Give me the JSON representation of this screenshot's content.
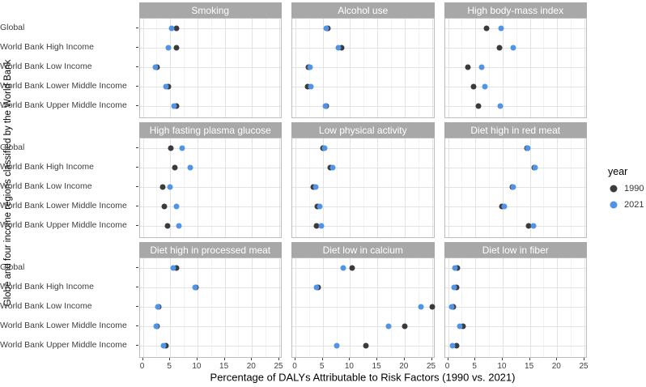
{
  "figure": {
    "y_axis_title": "Globe and four income regions classified by the World Bank",
    "x_axis_title": "Percentage of DALYs Attributable to Risk Factors (1990 vs. 2021)"
  },
  "legend": {
    "title": "year",
    "position": "right",
    "items": [
      {
        "label": "1990",
        "color": "#3b3b3b"
      },
      {
        "label": "2021",
        "color": "#4f94e8"
      }
    ]
  },
  "colors": {
    "strip_background": "#a8a8a8",
    "strip_text": "#ffffff",
    "panel_border": "#bdbdbd",
    "gridline_major": "#e3e3e3",
    "gridline_minor": "#f2f2f2",
    "series_1990": "#3b3b3b",
    "series_2021": "#4f94e8"
  },
  "chart_data": {
    "type": "scatter",
    "title": "",
    "xlabel": "Percentage of DALYs Attributable to Risk Factors (1990 vs. 2021)",
    "ylabel": "Globe and four income regions classified by the World Bank",
    "xlim": [
      0,
      25
    ],
    "x_ticks": [
      0,
      5,
      10,
      15,
      20,
      25
    ],
    "grid": true,
    "legend_title": "year",
    "series_names": [
      "1990",
      "2021"
    ],
    "categories": [
      "Global",
      "World Bank High Income",
      "World Bank Low Income",
      "World Bank Lower Middle Income",
      "World Bank Upper Middle Income"
    ],
    "facets": [
      {
        "title": "Smoking",
        "series": [
          {
            "name": "1990",
            "values": [
              6.1,
              6.1,
              2.6,
              4.7,
              6.2
            ]
          },
          {
            "name": "2021",
            "values": [
              5.2,
              4.7,
              2.3,
              4.2,
              5.7
            ]
          }
        ]
      },
      {
        "title": "Alcohol use",
        "series": [
          {
            "name": "1990",
            "values": [
              5.9,
              8.4,
              2.3,
              2.2,
              5.7
            ]
          },
          {
            "name": "2021",
            "values": [
              5.6,
              7.9,
              2.7,
              2.8,
              5.5
            ]
          }
        ]
      },
      {
        "title": "High body-mass index",
        "series": [
          {
            "name": "1990",
            "values": [
              7.1,
              9.4,
              3.6,
              4.6,
              5.5
            ]
          },
          {
            "name": "2021",
            "values": [
              9.7,
              11.9,
              6.1,
              6.8,
              9.6
            ]
          }
        ]
      },
      {
        "title": "High fasting plasma glucose",
        "series": [
          {
            "name": "1990",
            "values": [
              5.1,
              5.9,
              3.7,
              4.0,
              4.5
            ]
          },
          {
            "name": "2021",
            "values": [
              7.2,
              8.7,
              5.0,
              6.2,
              6.6
            ]
          }
        ]
      },
      {
        "title": "Low physical activity",
        "series": [
          {
            "name": "1990",
            "values": [
              5.0,
              6.4,
              3.3,
              4.0,
              3.9
            ]
          },
          {
            "name": "2021",
            "values": [
              5.3,
              6.8,
              3.7,
              4.5,
              4.7
            ]
          }
        ]
      },
      {
        "title": "Diet high in red meat",
        "series": [
          {
            "name": "1990",
            "values": [
              14.5,
              15.8,
              11.8,
              9.8,
              14.8
            ]
          },
          {
            "name": "2021",
            "values": [
              14.6,
              16.0,
              11.9,
              10.3,
              15.7
            ]
          }
        ]
      },
      {
        "title": "Diet high in processed meat",
        "series": [
          {
            "name": "1990",
            "values": [
              6.1,
              9.7,
              2.9,
              2.6,
              4.2
            ]
          },
          {
            "name": "2021",
            "values": [
              5.5,
              9.6,
              2.8,
              2.5,
              3.8
            ]
          }
        ]
      },
      {
        "title": "Diet low in calcium",
        "series": [
          {
            "name": "1990",
            "values": [
              10.4,
              4.2,
              25.0,
              20.0,
              12.9
            ]
          },
          {
            "name": "2021",
            "values": [
              8.7,
              3.8,
              23.0,
              17.1,
              7.5
            ]
          }
        ]
      },
      {
        "title": "Diet low in fiber",
        "series": [
          {
            "name": "1990",
            "values": [
              1.7,
              1.6,
              0.9,
              2.8,
              1.6
            ]
          },
          {
            "name": "2021",
            "values": [
              1.2,
              1.1,
              0.6,
              2.1,
              0.8
            ]
          }
        ]
      }
    ]
  }
}
